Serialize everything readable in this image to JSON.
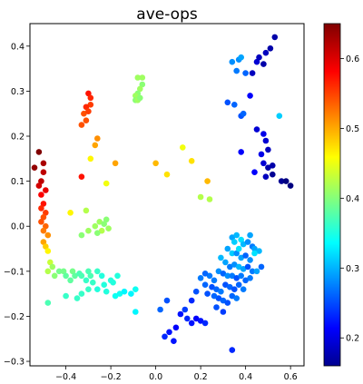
{
  "chart_data": {
    "type": "scatter",
    "title": "ave-ops",
    "xlabel": "",
    "ylabel": "",
    "xlim": [
      -0.56,
      0.66
    ],
    "ylim": [
      -0.31,
      0.45
    ],
    "xticks": [
      -0.4,
      -0.2,
      0.0,
      0.2,
      0.4,
      0.6
    ],
    "xtick_labels": [
      "−0.4",
      "−0.2",
      "0.0",
      "0.2",
      "0.4",
      "0.6"
    ],
    "yticks": [
      -0.3,
      -0.2,
      -0.1,
      0.0,
      0.1,
      0.2,
      0.3,
      0.4
    ],
    "ytick_labels": [
      "−0.3",
      "−0.2",
      "−0.1",
      "0.0",
      "0.1",
      "0.2",
      "0.3",
      "0.4"
    ],
    "grid": false,
    "colorbar": {
      "colormap": "jet",
      "range": [
        0.16,
        0.65
      ],
      "ticks": [
        0.2,
        0.3,
        0.4,
        0.5,
        0.6
      ],
      "tick_labels": [
        "0.2",
        "0.3",
        "0.4",
        "0.5",
        "0.6"
      ]
    },
    "points": [
      [
        -0.52,
        0.165,
        0.65
      ],
      [
        -0.54,
        0.13,
        0.64
      ],
      [
        -0.5,
        0.14,
        0.63
      ],
      [
        -0.5,
        0.12,
        0.62
      ],
      [
        -0.51,
        0.1,
        0.62
      ],
      [
        -0.52,
        0.09,
        0.61
      ],
      [
        -0.49,
        0.08,
        0.6
      ],
      [
        -0.51,
        0.07,
        0.59
      ],
      [
        -0.5,
        0.05,
        0.58
      ],
      [
        -0.51,
        0.04,
        0.57
      ],
      [
        -0.49,
        0.03,
        0.56
      ],
      [
        -0.5,
        0.02,
        0.55
      ],
      [
        -0.51,
        0.01,
        0.55
      ],
      [
        -0.49,
        0.0,
        0.54
      ],
      [
        -0.5,
        -0.01,
        0.53
      ],
      [
        -0.48,
        -0.02,
        0.52
      ],
      [
        -0.5,
        -0.035,
        0.51
      ],
      [
        -0.49,
        -0.045,
        0.49
      ],
      [
        -0.48,
        -0.055,
        0.47
      ],
      [
        -0.47,
        -0.08,
        0.44
      ],
      [
        -0.48,
        -0.1,
        0.43
      ],
      [
        -0.46,
        -0.09,
        0.42
      ],
      [
        -0.45,
        -0.11,
        0.41
      ],
      [
        -0.43,
        -0.1,
        0.4
      ],
      [
        -0.41,
        -0.1,
        0.4
      ],
      [
        -0.4,
        -0.11,
        0.39
      ],
      [
        -0.38,
        -0.12,
        0.39
      ],
      [
        -0.37,
        -0.1,
        0.4
      ],
      [
        -0.36,
        -0.11,
        0.39
      ],
      [
        -0.34,
        -0.105,
        0.38
      ],
      [
        -0.33,
        -0.11,
        0.38
      ],
      [
        -0.31,
        -0.12,
        0.37
      ],
      [
        -0.3,
        -0.1,
        0.38
      ],
      [
        -0.29,
        -0.11,
        0.38
      ],
      [
        -0.28,
        -0.125,
        0.37
      ],
      [
        -0.26,
        -0.1,
        0.37
      ],
      [
        -0.24,
        -0.11,
        0.36
      ],
      [
        -0.23,
        -0.13,
        0.36
      ],
      [
        -0.2,
        -0.12,
        0.36
      ],
      [
        -0.18,
        -0.155,
        0.35
      ],
      [
        -0.16,
        -0.15,
        0.35
      ],
      [
        -0.14,
        -0.145,
        0.34
      ],
      [
        -0.11,
        -0.15,
        0.34
      ],
      [
        -0.09,
        -0.14,
        0.35
      ],
      [
        -0.09,
        -0.19,
        0.34
      ],
      [
        -0.48,
        -0.17,
        0.38
      ],
      [
        -0.4,
        -0.155,
        0.37
      ],
      [
        -0.35,
        -0.16,
        0.37
      ],
      [
        -0.33,
        -0.15,
        0.37
      ],
      [
        -0.3,
        -0.14,
        0.37
      ],
      [
        -0.22,
        -0.145,
        0.36
      ],
      [
        -0.19,
        -0.125,
        0.36
      ],
      [
        -0.17,
        -0.11,
        0.36
      ],
      [
        -0.26,
        -0.14,
        0.36
      ],
      [
        -0.38,
        0.03,
        0.47
      ],
      [
        -0.31,
        0.035,
        0.43
      ],
      [
        -0.27,
        0.0,
        0.42
      ],
      [
        -0.3,
        -0.01,
        0.42
      ],
      [
        -0.25,
        0.01,
        0.42
      ],
      [
        -0.24,
        -0.01,
        0.43
      ],
      [
        -0.23,
        0.005,
        0.41
      ],
      [
        -0.22,
        0.015,
        0.41
      ],
      [
        -0.21,
        -0.005,
        0.42
      ],
      [
        -0.33,
        -0.02,
        0.41
      ],
      [
        -0.26,
        -0.015,
        0.41
      ],
      [
        -0.3,
        0.295,
        0.58
      ],
      [
        -0.29,
        0.285,
        0.57
      ],
      [
        -0.29,
        0.27,
        0.56
      ],
      [
        -0.31,
        0.265,
        0.57
      ],
      [
        -0.32,
        0.25,
        0.55
      ],
      [
        -0.3,
        0.255,
        0.56
      ],
      [
        -0.31,
        0.235,
        0.55
      ],
      [
        -0.33,
        0.225,
        0.55
      ],
      [
        -0.26,
        0.195,
        0.52
      ],
      [
        -0.27,
        0.18,
        0.51
      ],
      [
        -0.33,
        0.11,
        0.58
      ],
      [
        -0.29,
        0.15,
        0.47
      ],
      [
        -0.18,
        0.14,
        0.51
      ],
      [
        -0.22,
        0.095,
        0.46
      ],
      [
        -0.08,
        0.33,
        0.42
      ],
      [
        -0.06,
        0.33,
        0.42
      ],
      [
        -0.06,
        0.315,
        0.41
      ],
      [
        -0.07,
        0.305,
        0.42
      ],
      [
        -0.08,
        0.295,
        0.41
      ],
      [
        -0.09,
        0.29,
        0.42
      ],
      [
        -0.09,
        0.28,
        0.41
      ],
      [
        -0.08,
        0.28,
        0.42
      ],
      [
        -0.07,
        0.285,
        0.41
      ],
      [
        0.0,
        0.14,
        0.5
      ],
      [
        0.05,
        0.115,
        0.48
      ],
      [
        0.12,
        0.175,
        0.46
      ],
      [
        0.16,
        0.145,
        0.48
      ],
      [
        0.23,
        0.1,
        0.5
      ],
      [
        0.2,
        0.065,
        0.43
      ],
      [
        0.24,
        0.06,
        0.43
      ],
      [
        0.34,
        0.365,
        0.29
      ],
      [
        0.37,
        0.37,
        0.29
      ],
      [
        0.38,
        0.375,
        0.3
      ],
      [
        0.36,
        0.345,
        0.28
      ],
      [
        0.4,
        0.34,
        0.27
      ],
      [
        0.32,
        0.275,
        0.26
      ],
      [
        0.35,
        0.27,
        0.27
      ],
      [
        0.38,
        0.245,
        0.26
      ],
      [
        0.39,
        0.25,
        0.27
      ],
      [
        0.42,
        0.29,
        0.22
      ],
      [
        0.43,
        0.34,
        0.19
      ],
      [
        0.45,
        0.365,
        0.2
      ],
      [
        0.46,
        0.375,
        0.19
      ],
      [
        0.48,
        0.36,
        0.18
      ],
      [
        0.49,
        0.385,
        0.19
      ],
      [
        0.51,
        0.395,
        0.18
      ],
      [
        0.53,
        0.42,
        0.18
      ],
      [
        0.55,
        0.245,
        0.32
      ],
      [
        0.45,
        0.215,
        0.2
      ],
      [
        0.48,
        0.205,
        0.21
      ],
      [
        0.49,
        0.19,
        0.2
      ],
      [
        0.5,
        0.17,
        0.19
      ],
      [
        0.47,
        0.16,
        0.21
      ],
      [
        0.48,
        0.14,
        0.2
      ],
      [
        0.38,
        0.165,
        0.22
      ],
      [
        0.44,
        0.12,
        0.22
      ],
      [
        0.49,
        0.11,
        0.19
      ],
      [
        0.5,
        0.13,
        0.18
      ],
      [
        0.52,
        0.135,
        0.18
      ],
      [
        0.52,
        0.115,
        0.17
      ],
      [
        0.56,
        0.1,
        0.17
      ],
      [
        0.58,
        0.1,
        0.16
      ],
      [
        0.6,
        0.09,
        0.16
      ],
      [
        0.34,
        -0.025,
        0.3
      ],
      [
        0.36,
        -0.02,
        0.31
      ],
      [
        0.38,
        -0.03,
        0.33
      ],
      [
        0.39,
        -0.04,
        0.31
      ],
      [
        0.41,
        -0.035,
        0.29
      ],
      [
        0.43,
        -0.045,
        0.28
      ],
      [
        0.44,
        -0.05,
        0.3
      ],
      [
        0.46,
        -0.055,
        0.31
      ],
      [
        0.32,
        -0.05,
        0.3
      ],
      [
        0.34,
        -0.06,
        0.32
      ],
      [
        0.36,
        -0.06,
        0.29
      ],
      [
        0.38,
        -0.07,
        0.3
      ],
      [
        0.4,
        -0.065,
        0.27
      ],
      [
        0.42,
        -0.075,
        0.29
      ],
      [
        0.29,
        -0.07,
        0.31
      ],
      [
        0.31,
        -0.08,
        0.3
      ],
      [
        0.33,
        -0.09,
        0.28
      ],
      [
        0.35,
        -0.085,
        0.29
      ],
      [
        0.37,
        -0.09,
        0.31
      ],
      [
        0.39,
        -0.095,
        0.3
      ],
      [
        0.41,
        -0.09,
        0.26
      ],
      [
        0.43,
        -0.1,
        0.28
      ],
      [
        0.45,
        -0.1,
        0.3
      ],
      [
        0.47,
        -0.09,
        0.27
      ],
      [
        0.28,
        -0.1,
        0.29
      ],
      [
        0.3,
        -0.105,
        0.27
      ],
      [
        0.32,
        -0.11,
        0.29
      ],
      [
        0.34,
        -0.11,
        0.28
      ],
      [
        0.36,
        -0.115,
        0.26
      ],
      [
        0.38,
        -0.11,
        0.28
      ],
      [
        0.4,
        -0.12,
        0.27
      ],
      [
        0.42,
        -0.115,
        0.28
      ],
      [
        0.26,
        -0.12,
        0.28
      ],
      [
        0.24,
        -0.11,
        0.28
      ],
      [
        0.22,
        -0.105,
        0.27
      ],
      [
        0.2,
        -0.115,
        0.28
      ],
      [
        0.22,
        -0.13,
        0.27
      ],
      [
        0.25,
        -0.135,
        0.26
      ],
      [
        0.27,
        -0.14,
        0.27
      ],
      [
        0.29,
        -0.145,
        0.28
      ],
      [
        0.31,
        -0.13,
        0.26
      ],
      [
        0.33,
        -0.135,
        0.27
      ],
      [
        0.35,
        -0.14,
        0.26
      ],
      [
        0.37,
        -0.13,
        0.27
      ],
      [
        0.39,
        -0.14,
        0.28
      ],
      [
        0.28,
        -0.16,
        0.26
      ],
      [
        0.3,
        -0.165,
        0.27
      ],
      [
        0.32,
        -0.17,
        0.26
      ],
      [
        0.34,
        -0.155,
        0.27
      ],
      [
        0.36,
        -0.16,
        0.28
      ],
      [
        0.23,
        -0.15,
        0.26
      ],
      [
        0.26,
        -0.155,
        0.27
      ],
      [
        0.18,
        -0.145,
        0.26
      ],
      [
        0.16,
        -0.165,
        0.24
      ],
      [
        0.13,
        -0.185,
        0.25
      ],
      [
        0.11,
        -0.195,
        0.23
      ],
      [
        0.14,
        -0.205,
        0.24
      ],
      [
        0.16,
        -0.215,
        0.23
      ],
      [
        0.18,
        -0.205,
        0.22
      ],
      [
        0.2,
        -0.21,
        0.23
      ],
      [
        0.22,
        -0.215,
        0.24
      ],
      [
        0.05,
        -0.165,
        0.26
      ],
      [
        0.09,
        -0.225,
        0.22
      ],
      [
        0.06,
        -0.235,
        0.23
      ],
      [
        0.04,
        -0.245,
        0.24
      ],
      [
        0.08,
        -0.255,
        0.23
      ],
      [
        0.02,
        -0.185,
        0.27
      ],
      [
        0.34,
        -0.275,
        0.24
      ],
      [
        0.27,
        -0.18,
        0.26
      ],
      [
        0.3,
        -0.19,
        0.25
      ],
      [
        0.37,
        -0.05,
        0.33
      ],
      [
        0.35,
        -0.035,
        0.32
      ],
      [
        0.42,
        -0.02,
        0.3
      ],
      [
        0.44,
        -0.06,
        0.33
      ]
    ]
  }
}
